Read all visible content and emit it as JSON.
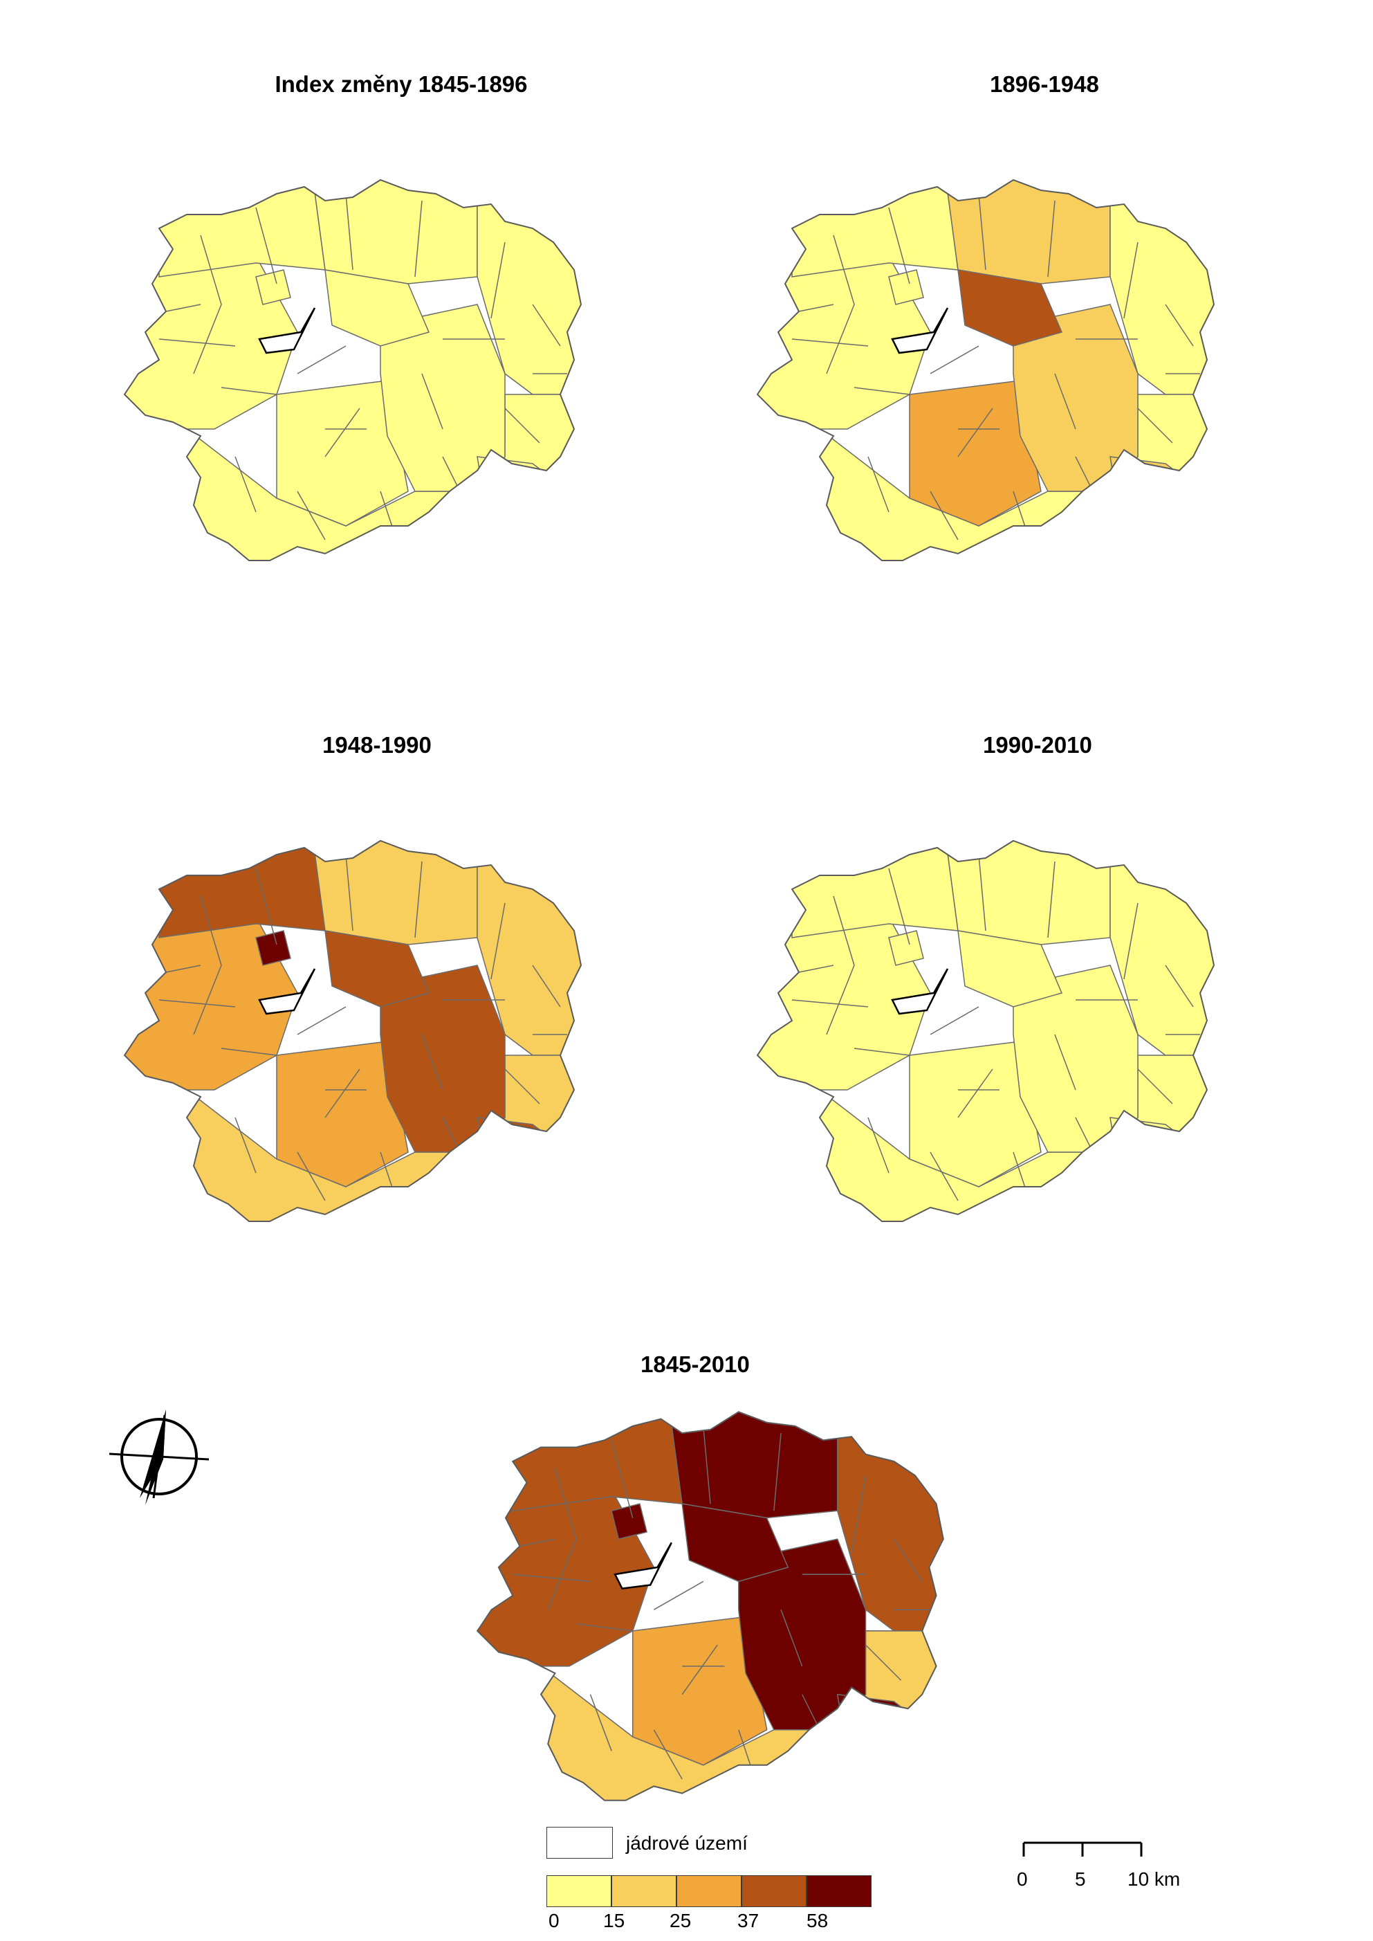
{
  "maps": [
    {
      "title": "Index změny 1845-1896",
      "fills": {
        "west": "#ffff8a",
        "north": "#ffff8a",
        "northwest": "#ffff8a",
        "center": "#ffff8a",
        "northcenter": "#ffff8a",
        "centersouth": "#ffff8a",
        "east": "#ffff8a",
        "south": "#ffff8a",
        "southeast": "#ffff8a",
        "tail": "#ffff8a",
        "spot": "#ffff8a"
      }
    },
    {
      "title": "1896-1948",
      "fills": {
        "west": "#ffff8a",
        "north": "#f8ce5c",
        "northwest": "#ffff8a",
        "center": "#f8ce5c",
        "northcenter": "#b35416",
        "centersouth": "#f2a73a",
        "east": "#ffff8a",
        "south": "#ffff8a",
        "southeast": "#ffff8a",
        "tail": "#f8ce5c",
        "spot": "#ffff8a"
      }
    },
    {
      "title": "1948-1990",
      "fills": {
        "west": "#f2a73a",
        "north": "#f8ce5c",
        "northwest": "#b35416",
        "center": "#b35416",
        "northcenter": "#b35416",
        "centersouth": "#f2a73a",
        "east": "#f8ce5c",
        "south": "#f8ce5c",
        "southeast": "#f8ce5c",
        "tail": "#b35416",
        "spot": "#6e0000"
      }
    },
    {
      "title": "1990-2010",
      "fills": {
        "west": "#ffff8a",
        "north": "#ffff8a",
        "northwest": "#ffff8a",
        "center": "#ffff8a",
        "northcenter": "#ffff8a",
        "centersouth": "#ffff8a",
        "east": "#ffff8a",
        "south": "#ffff8a",
        "southeast": "#ffff8a",
        "tail": "#ffff8a",
        "spot": "#ffff8a"
      }
    },
    {
      "title": "1845-2010",
      "fills": {
        "west": "#b35416",
        "north": "#6e0000",
        "northwest": "#b35416",
        "center": "#6e0000",
        "northcenter": "#6e0000",
        "centersouth": "#f2a73a",
        "east": "#b35416",
        "south": "#f8ce5c",
        "southeast": "#f8ce5c",
        "tail": "#6e0000",
        "spot": "#6e0000"
      }
    }
  ],
  "legend": {
    "core_area_label": "jádrové území",
    "bins": [
      {
        "color": "#ffff8a"
      },
      {
        "color": "#f8ce5c"
      },
      {
        "color": "#f2a73a"
      },
      {
        "color": "#b35416"
      },
      {
        "color": "#6e0000"
      }
    ],
    "break_labels": [
      "0",
      "15",
      "25",
      "37",
      "58"
    ]
  },
  "scale_bar": {
    "labels": [
      "0",
      "5",
      "10 km"
    ]
  },
  "north_arrow": {
    "icon": "north-arrow-icon"
  }
}
